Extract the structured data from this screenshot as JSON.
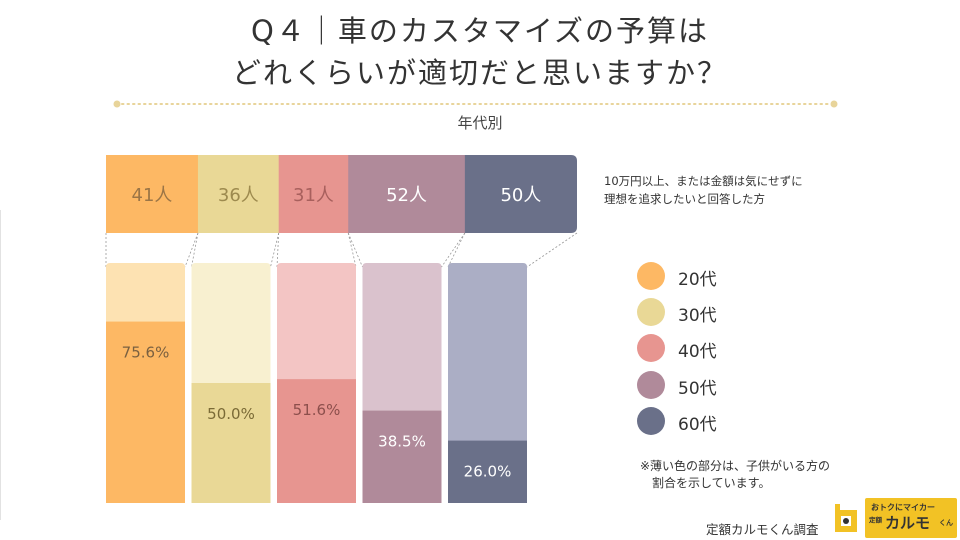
{
  "header": {
    "title_line1": "Q４｜車のカスタマイズの予算は",
    "title_line2": "どれくらいが適切だと思いますか？",
    "subtitle": "年代別"
  },
  "description": {
    "line1": "10万円以上、または金額は気にせずに",
    "line2": "理想を追求したいと回答した方"
  },
  "note": {
    "line1": "※薄い色の部分は、子供がいる方の",
    "line2": "割合を示しています。"
  },
  "source": "定額カルモくん調査",
  "logo": {
    "tagline": "おトクにマイカー",
    "small": "定額",
    "name": "カルモ",
    "suffix": "くん"
  },
  "colors": {
    "dotted_line": "#e8d49a",
    "connector": "#999999"
  },
  "chart_data": {
    "type": "bar",
    "categories": [
      "20代",
      "30代",
      "40代",
      "50代",
      "60代"
    ],
    "counts": [
      41,
      36,
      31,
      52,
      50
    ],
    "count_unit": "人",
    "percentages": [
      75.6,
      50.0,
      51.6,
      38.5,
      26.0
    ],
    "percent_unit": "%",
    "ylim": [
      0,
      100
    ],
    "legend_position": "right",
    "colors": {
      "dark": [
        "#fdb864",
        "#e9d896",
        "#e79590",
        "#b08a9a",
        "#6a7089"
      ],
      "light": [
        "#fde2b2",
        "#f8f0d0",
        "#f3c5c4",
        "#dac2cd",
        "#abaec5"
      ],
      "count_text": [
        "#9b7546",
        "#9d8a4e",
        "#a8605d",
        "#ffffff",
        "#ffffff"
      ],
      "percent_text": [
        "#7a6040",
        "#7a6a36",
        "#8c4f4c",
        "#ffffff",
        "#ffffff"
      ]
    }
  }
}
